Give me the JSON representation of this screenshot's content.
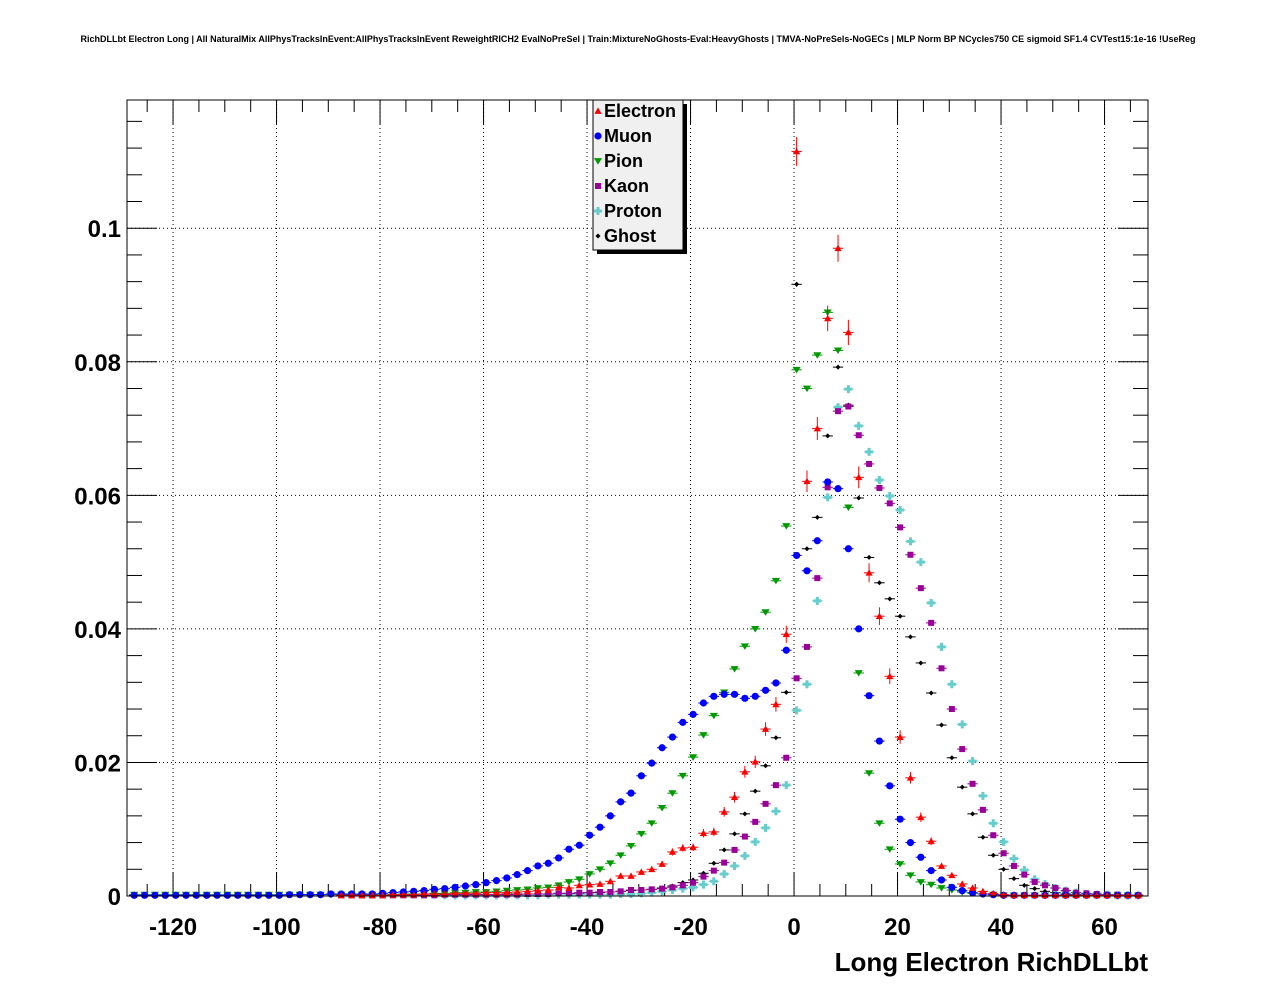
{
  "chart_data": {
    "type": "scatter",
    "title": "RichDLLbt Electron Long | All NaturalMix AllPhysTracksInEvent:AllPhysTracksInEvent ReweightRICH2 EvalNoPreSel | Train:MixtureNoGhosts-Eval:HeavyGhosts | TMVA-NoPreSels-NoGECs | MLP Norm BP NCycles750 CE sigmoid SF1.4 CVTest15:1e-16 !UseReg",
    "xlabel": "Long Electron RichDLLbt",
    "ylabel": "",
    "xlim": [
      -128.9,
      68.4
    ],
    "ylim": [
      0,
      0.1192
    ],
    "xticks": [
      -120,
      -100,
      -80,
      -60,
      -40,
      -20,
      0,
      20,
      40,
      60
    ],
    "xtick_labels": [
      "-120",
      "-100",
      "-80",
      "-60",
      "-40",
      "-20",
      "0",
      "20",
      "40",
      "60"
    ],
    "yticks": [
      0,
      0.02,
      0.04,
      0.06,
      0.08,
      0.1
    ],
    "ytick_labels": [
      "0",
      "0.02",
      "0.04",
      "0.06",
      "0.08",
      "0.1"
    ],
    "grid": true,
    "legend_position": "top-center",
    "bin_width": 2,
    "x": [
      -127.5,
      -125.5,
      -123.5,
      -121.5,
      -119.5,
      -117.5,
      -115.5,
      -113.5,
      -111.5,
      -109.5,
      -107.5,
      -105.5,
      -103.5,
      -101.5,
      -99.5,
      -97.5,
      -95.5,
      -93.5,
      -91.5,
      -89.5,
      -87.5,
      -85.5,
      -83.5,
      -81.5,
      -79.5,
      -77.5,
      -75.5,
      -73.5,
      -71.5,
      -69.5,
      -67.5,
      -65.5,
      -63.5,
      -61.5,
      -59.5,
      -57.5,
      -55.5,
      -53.5,
      -51.5,
      -49.5,
      -47.5,
      -45.5,
      -43.5,
      -41.5,
      -39.5,
      -37.5,
      -35.5,
      -33.5,
      -31.5,
      -29.5,
      -27.5,
      -25.5,
      -23.5,
      -21.5,
      -19.5,
      -17.5,
      -15.5,
      -13.5,
      -11.5,
      -9.5,
      -7.5,
      -5.5,
      -3.5,
      -1.5,
      0.5,
      2.5,
      4.5,
      6.5,
      8.5,
      10.5,
      12.5,
      14.5,
      16.5,
      18.5,
      20.5,
      22.5,
      24.5,
      26.5,
      28.5,
      30.5,
      32.5,
      34.5,
      36.5,
      38.5,
      40.5,
      42.5,
      44.5,
      46.5,
      48.5,
      50.5,
      52.5,
      54.5,
      56.5,
      58.5,
      60.5,
      62.5,
      64.5,
      66.5
    ],
    "series": [
      {
        "name": "Electron",
        "color": "#ff0000",
        "marker": "triangle-up",
        "values": [
          0,
          0,
          0,
          0,
          0,
          0,
          0,
          0,
          0,
          0,
          0,
          0,
          0,
          0,
          0,
          0,
          0,
          0,
          0,
          0,
          0.0001,
          0.0001,
          0.0001,
          0.0001,
          0.0001,
          0.0002,
          0.0002,
          0.0002,
          0.0003,
          0.0003,
          0.0003,
          0.0004,
          0.0004,
          0.0004,
          0.0005,
          0.0005,
          0.0005,
          0.0006,
          0.0007,
          0.0008,
          0.0009,
          0.0013,
          0.0012,
          0.0016,
          0.0017,
          0.0018,
          0.0022,
          0.003,
          0.003,
          0.0036,
          0.004,
          0.0048,
          0.0066,
          0.0072,
          0.0073,
          0.0094,
          0.0096,
          0.0126,
          0.0148,
          0.0186,
          0.0201,
          0.025,
          0.0287,
          0.0392,
          0.1115,
          0.0621,
          0.07,
          0.0865,
          0.097,
          0.0844,
          0.0627,
          0.0484,
          0.0419,
          0.0329,
          0.0238,
          0.0177,
          0.0118,
          0.0082,
          0.0045,
          0.0031,
          0.0018,
          0.0012,
          0.0007,
          0.0004,
          0.0002,
          0.0001,
          0.0001,
          0.0001,
          0.0001,
          0.0001,
          0.0001,
          0.0001,
          0.0001,
          0.0001,
          0.0001,
          0.0001,
          0.0001,
          0.0001
        ]
      },
      {
        "name": "Muon",
        "color": "#0000ff",
        "marker": "circle",
        "values": [
          0.0001,
          0.0001,
          0.0001,
          0.0001,
          0.0001,
          0.0001,
          0.0001,
          0.0001,
          0.0001,
          0.0001,
          0.0001,
          0.0001,
          0.0001,
          0.0001,
          0.0001,
          0.0002,
          0.0002,
          0.0002,
          0.0002,
          0.0003,
          0.0003,
          0.0003,
          0.0003,
          0.0003,
          0.0004,
          0.0005,
          0.0006,
          0.0007,
          0.0008,
          0.001,
          0.0011,
          0.0013,
          0.0015,
          0.0017,
          0.002,
          0.0023,
          0.0027,
          0.0032,
          0.0038,
          0.0045,
          0.0049,
          0.0057,
          0.007,
          0.0076,
          0.0091,
          0.0103,
          0.012,
          0.0141,
          0.0154,
          0.018,
          0.0199,
          0.0222,
          0.0238,
          0.026,
          0.0272,
          0.0289,
          0.0299,
          0.0302,
          0.0302,
          0.0296,
          0.0299,
          0.0308,
          0.0319,
          0.0368,
          0.051,
          0.0487,
          0.0532,
          0.062,
          0.061,
          0.052,
          0.04,
          0.03,
          0.0232,
          0.0165,
          0.0115,
          0.008,
          0.0058,
          0.0038,
          0.0024,
          0.0013,
          0.0008,
          0.0005,
          0.0003,
          0.0002,
          0.0001,
          0.0001,
          0.0001,
          0.0001,
          0.0001,
          0.0001,
          0.0001,
          0.0001,
          0.0001,
          0.0001,
          0.0001,
          0.0001,
          0.0001,
          0.0001
        ]
      },
      {
        "name": "Pion",
        "color": "#009900",
        "marker": "triangle-down",
        "values": [
          0.0002,
          0.0002,
          0.0002,
          0.0002,
          0.0002,
          0.0002,
          0.0002,
          0.0002,
          0.0002,
          0.0002,
          0.0002,
          0.0002,
          0.0002,
          0.0002,
          0.0002,
          0.0002,
          0.0002,
          0.0002,
          0.0002,
          0.0002,
          0.0002,
          0.0002,
          0.0002,
          0.0002,
          0.0002,
          0.0002,
          0.0003,
          0.0003,
          0.0003,
          0.0004,
          0.0004,
          0.0005,
          0.0005,
          0.0006,
          0.0006,
          0.0007,
          0.0008,
          0.0009,
          0.001,
          0.0012,
          0.0013,
          0.0016,
          0.0021,
          0.0025,
          0.0033,
          0.004,
          0.0049,
          0.0061,
          0.0075,
          0.0093,
          0.0109,
          0.0132,
          0.0154,
          0.018,
          0.0208,
          0.0241,
          0.027,
          0.0305,
          0.034,
          0.0374,
          0.04,
          0.0425,
          0.0472,
          0.0554,
          0.0788,
          0.076,
          0.081,
          0.0874,
          0.0817,
          0.0582,
          0.0334,
          0.0184,
          0.0109,
          0.007,
          0.0048,
          0.0031,
          0.0021,
          0.0017,
          0.0012,
          0.0009,
          0.0006,
          0.0004,
          0.0003,
          0.0002,
          0.0001,
          0.0001,
          0.0001,
          0.0001,
          0.0001,
          0.0001,
          0.0001,
          0.0001,
          0.0001,
          0.0001,
          0.0001,
          0.0001,
          0.0001,
          0.0001
        ]
      },
      {
        "name": "Kaon",
        "color": "#990099",
        "marker": "square",
        "values": [
          0,
          0,
          0,
          0,
          0,
          0,
          0,
          0,
          0,
          0,
          0,
          0,
          0,
          0,
          0,
          0,
          0,
          0,
          0,
          0,
          0.0001,
          0.0001,
          0.0001,
          0.0001,
          0.0001,
          0.0001,
          0.0001,
          0.0001,
          0.0001,
          0.0001,
          0.0002,
          0.0002,
          0.0002,
          0.0002,
          0.0002,
          0.0002,
          0.0002,
          0.0002,
          0.0003,
          0.0003,
          0.0003,
          0.0004,
          0.0004,
          0.0005,
          0.0005,
          0.0006,
          0.0006,
          0.0007,
          0.0009,
          0.0009,
          0.001,
          0.0011,
          0.0013,
          0.0016,
          0.002,
          0.0029,
          0.0038,
          0.005,
          0.0069,
          0.0089,
          0.0111,
          0.0138,
          0.0166,
          0.0207,
          0.0326,
          0.0373,
          0.0476,
          0.0612,
          0.0726,
          0.0733,
          0.069,
          0.0647,
          0.0611,
          0.0588,
          0.0552,
          0.0511,
          0.0461,
          0.0409,
          0.0341,
          0.028,
          0.022,
          0.0168,
          0.0129,
          0.0091,
          0.0064,
          0.0045,
          0.0032,
          0.0021,
          0.0016,
          0.0012,
          0.0008,
          0.0005,
          0.0004,
          0.0003,
          0.0002,
          0.0002,
          0.0001,
          0.0001
        ]
      },
      {
        "name": "Proton",
        "color": "#66cccc",
        "marker": "cross",
        "values": [
          0,
          0,
          0,
          0,
          0,
          0,
          0,
          0,
          0,
          0,
          0,
          0,
          0,
          0,
          0,
          0,
          0,
          0,
          0,
          0,
          0,
          0,
          0,
          0,
          0,
          0,
          0,
          0,
          0,
          0,
          0.0001,
          0.0001,
          0.0001,
          0.0001,
          0.0001,
          0.0001,
          0.0001,
          0.0001,
          0.0001,
          0.0001,
          0.0002,
          0.0002,
          0.0002,
          0.0002,
          0.0002,
          0.0002,
          0.0002,
          0.0003,
          0.0003,
          0.0004,
          0.0005,
          0.0007,
          0.0009,
          0.0011,
          0.0013,
          0.0017,
          0.0022,
          0.0033,
          0.0045,
          0.006,
          0.0081,
          0.0102,
          0.0127,
          0.0166,
          0.0278,
          0.0317,
          0.0442,
          0.0597,
          0.0732,
          0.0759,
          0.0704,
          0.0665,
          0.0623,
          0.0599,
          0.0578,
          0.0531,
          0.05,
          0.0439,
          0.0373,
          0.0317,
          0.0257,
          0.0202,
          0.015,
          0.0109,
          0.0081,
          0.0056,
          0.0039,
          0.0025,
          0.0018,
          0.0012,
          0.0008,
          0.0005,
          0.0003,
          0.0002,
          0.0002,
          0.0001,
          0.0001,
          0.0001
        ]
      },
      {
        "name": "Ghost",
        "color": "#000000",
        "marker": "diamond",
        "values": [
          0,
          0,
          0,
          0,
          0,
          0,
          0,
          0,
          0,
          0,
          0,
          0,
          0,
          0,
          0,
          0,
          0,
          0,
          0,
          0,
          0.0001,
          0.0001,
          0.0001,
          0.0001,
          0.0001,
          0.0001,
          0.0001,
          0.0001,
          0.0001,
          0.0001,
          0.0002,
          0.0002,
          0.0002,
          0.0002,
          0.0002,
          0.0002,
          0.0003,
          0.0003,
          0.0003,
          0.0003,
          0.0003,
          0.0004,
          0.0004,
          0.0004,
          0.0005,
          0.0005,
          0.0006,
          0.0007,
          0.0008,
          0.0009,
          0.001,
          0.0012,
          0.0015,
          0.002,
          0.0024,
          0.0034,
          0.0049,
          0.0069,
          0.0093,
          0.0123,
          0.0157,
          0.0195,
          0.0237,
          0.0305,
          0.0916,
          0.052,
          0.0567,
          0.0689,
          0.0792,
          0.0735,
          0.0596,
          0.0507,
          0.0469,
          0.0445,
          0.0419,
          0.0388,
          0.0349,
          0.0304,
          0.0256,
          0.0207,
          0.0163,
          0.0123,
          0.0088,
          0.0061,
          0.004,
          0.0026,
          0.0016,
          0.0011,
          0.0007,
          0.0005,
          0.0003,
          0.0002,
          0.0002,
          0.0001,
          0.0001,
          0.0001,
          0.0001,
          0.0001
        ]
      }
    ]
  }
}
